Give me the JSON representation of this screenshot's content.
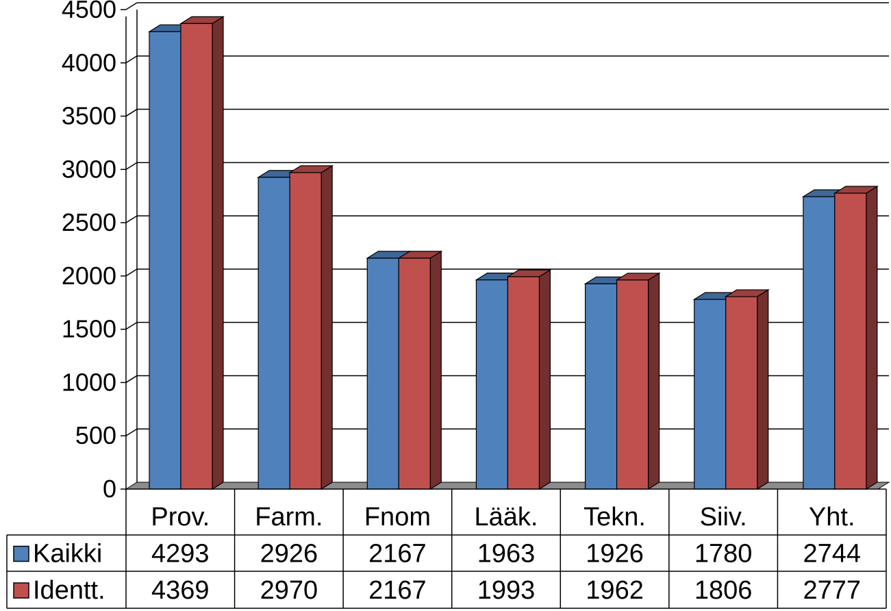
{
  "chart_data": {
    "type": "bar",
    "title": "",
    "xlabel": "",
    "ylabel": "",
    "ylim": [
      0,
      4500
    ],
    "y_ticks": [
      0,
      500,
      1000,
      1500,
      2000,
      2500,
      3000,
      3500,
      4000,
      4500
    ],
    "y_tick_labels": [
      "0",
      "500",
      "1000",
      "1500",
      "2000",
      "2500",
      "3000",
      "3500",
      "4000",
      "4500"
    ],
    "grid": true,
    "style": "3d-clustered-column",
    "legend_placement": "data-table",
    "categories": [
      "Prov.",
      "Farm.",
      "Fnom",
      "Lääk.",
      "Tekn.",
      "Siiv.",
      "Yht."
    ],
    "series": [
      {
        "name": "Kaikki",
        "color": "#4f81bd",
        "values": [
          4293,
          2926,
          2167,
          1963,
          1926,
          1780,
          2744
        ],
        "value_labels": [
          "4293",
          "2926",
          "2167",
          "1963",
          "1926",
          "1780",
          "2744"
        ]
      },
      {
        "name": "Identt.",
        "color": "#c0504d",
        "values": [
          4369,
          2970,
          2167,
          1993,
          1962,
          1806,
          2777
        ],
        "value_labels": [
          "4369",
          "2970",
          "2167",
          "1993",
          "1962",
          "1806",
          "2777"
        ]
      }
    ]
  }
}
